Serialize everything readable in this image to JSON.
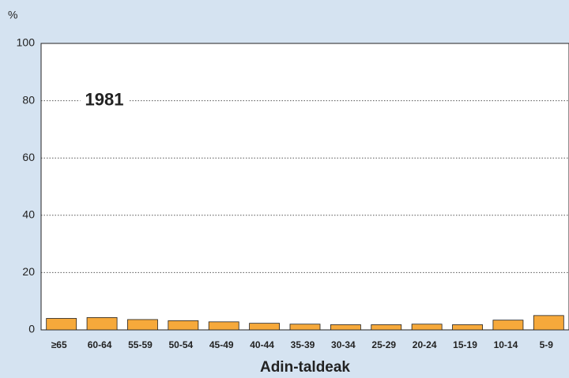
{
  "chart_data": {
    "type": "bar",
    "y_label": "%",
    "x_label": "Adin-taldeak",
    "annotation": "1981",
    "categories": [
      "≥65",
      "60-64",
      "55-59",
      "50-54",
      "45-49",
      "40-44",
      "35-39",
      "30-34",
      "25-29",
      "20-24",
      "15-19",
      "10-14",
      "5-9"
    ],
    "values": [
      4.0,
      4.3,
      3.6,
      3.2,
      2.8,
      2.3,
      2.0,
      1.8,
      1.8,
      2.0,
      1.8,
      3.4,
      5.0
    ],
    "color": "#f6a93b",
    "ylim": [
      0,
      100
    ],
    "yticks": [
      0,
      20,
      40,
      60,
      80,
      100
    ],
    "grid": true
  }
}
